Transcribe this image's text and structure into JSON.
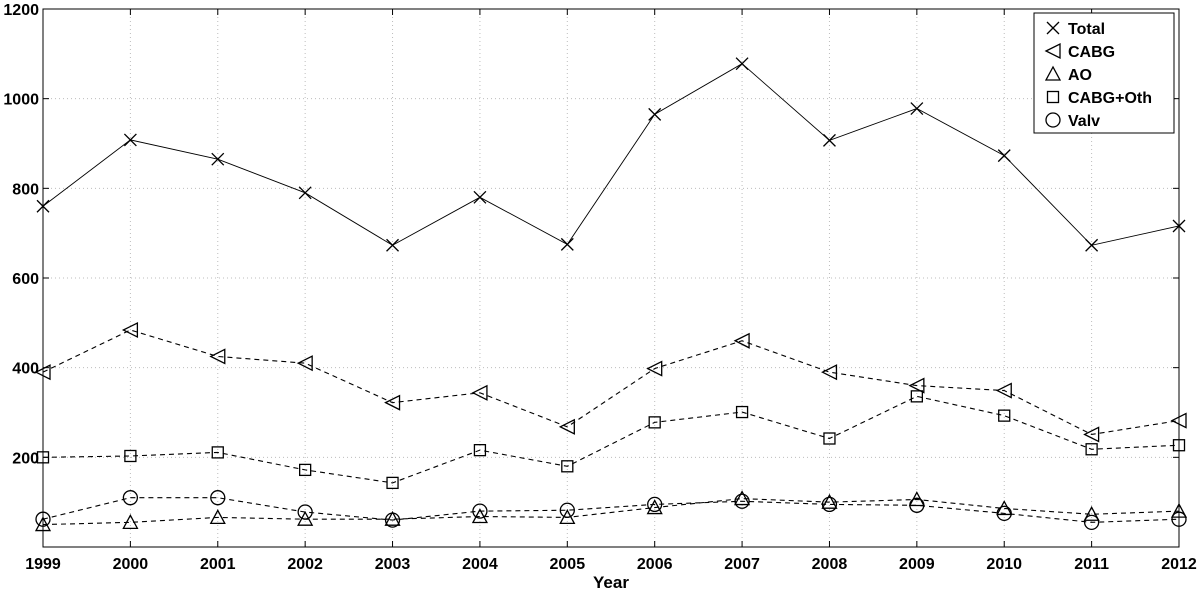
{
  "chart_data": {
    "type": "line",
    "title": "",
    "xlabel": "Year",
    "ylabel": "",
    "x": [
      1999,
      2000,
      2001,
      2002,
      2003,
      2004,
      2005,
      2006,
      2007,
      2008,
      2009,
      2010,
      2011,
      2012
    ],
    "xlim": [
      1999,
      2012
    ],
    "ylim": [
      0,
      1200
    ],
    "y_ticks": [
      200,
      400,
      600,
      800,
      1000,
      1200
    ],
    "grid": true,
    "legend_position": "top-right",
    "series": [
      {
        "name": "Total",
        "marker": "x",
        "line": "solid",
        "color": "#000000",
        "values": [
          760,
          908,
          865,
          790,
          673,
          780,
          675,
          965,
          1078,
          907,
          978,
          873,
          673,
          716
        ]
      },
      {
        "name": "CABG",
        "marker": "triangle-left",
        "line": "dashed",
        "color": "#000000",
        "values": [
          390,
          484,
          425,
          410,
          322,
          344,
          268,
          398,
          460,
          390,
          360,
          349,
          251,
          282
        ]
      },
      {
        "name": "AO",
        "marker": "triangle-up",
        "line": "dashed",
        "color": "#000000",
        "values": [
          50,
          55,
          66,
          62,
          62,
          68,
          66,
          88,
          108,
          100,
          106,
          86,
          73,
          80
        ]
      },
      {
        "name": "CABG+Oth",
        "marker": "square",
        "line": "dashed",
        "color": "#000000",
        "values": [
          200,
          203,
          211,
          172,
          143,
          216,
          180,
          278,
          301,
          242,
          336,
          293,
          218,
          227
        ]
      },
      {
        "name": "Valv",
        "marker": "circle",
        "line": "dashed",
        "color": "#000000",
        "values": [
          62,
          110,
          110,
          78,
          60,
          80,
          82,
          95,
          102,
          95,
          93,
          75,
          55,
          62
        ]
      }
    ]
  }
}
